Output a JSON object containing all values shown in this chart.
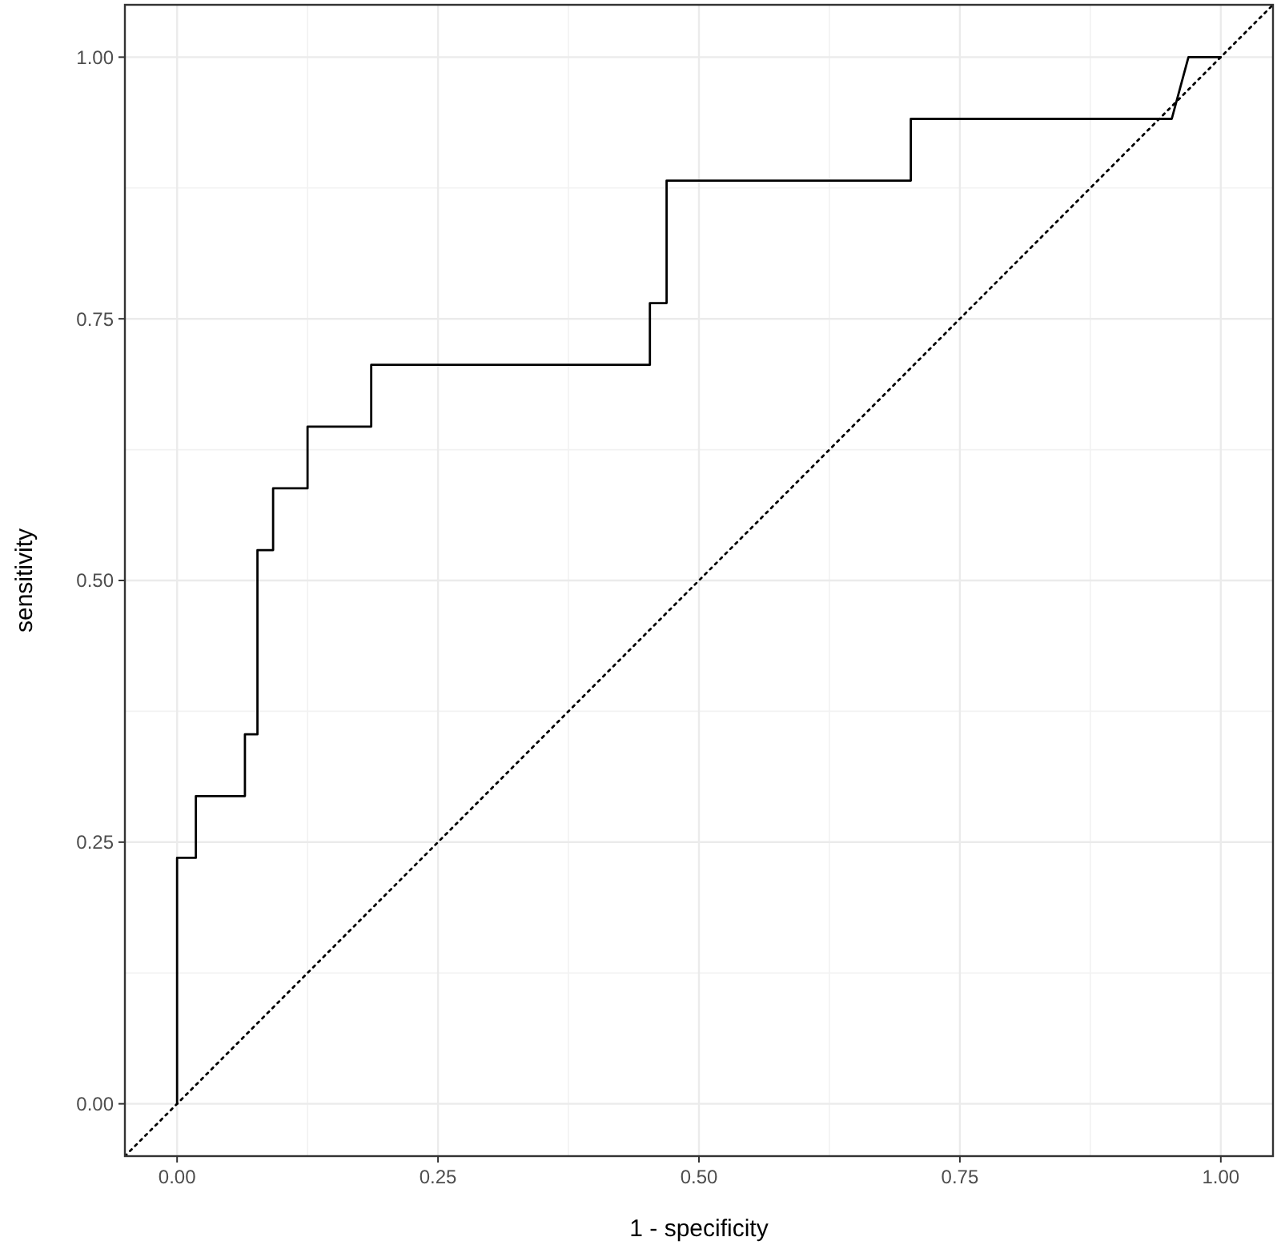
{
  "chart_data": {
    "type": "line",
    "xlabel": "1 - specificity",
    "ylabel": "sensitivity",
    "xlim": [
      -0.05,
      1.05
    ],
    "ylim": [
      -0.05,
      1.05
    ],
    "xticks": [
      {
        "value": 0,
        "label": "0.00"
      },
      {
        "value": 0.25,
        "label": "0.25"
      },
      {
        "value": 0.5,
        "label": "0.50"
      },
      {
        "value": 0.75,
        "label": "0.75"
      },
      {
        "value": 1,
        "label": "1.00"
      }
    ],
    "yticks": [
      {
        "value": 0,
        "label": "0.00"
      },
      {
        "value": 0.25,
        "label": "0.25"
      },
      {
        "value": 0.5,
        "label": "0.50"
      },
      {
        "value": 0.75,
        "label": "0.75"
      },
      {
        "value": 1,
        "label": "1.00"
      }
    ],
    "grid": true,
    "series": [
      {
        "color": "#000000",
        "line_style": "solid",
        "x": [
          0,
          0,
          0.018,
          0.018,
          0.065,
          0.065,
          0.077,
          0.077,
          0.092,
          0.092,
          0.125,
          0.125,
          0.186,
          0.186,
          0.453,
          0.453,
          0.469,
          0.469,
          0.703,
          0.703,
          0.953,
          0.969,
          1
        ],
        "values": [
          0,
          0.235,
          0.235,
          0.294,
          0.294,
          0.353,
          0.353,
          0.529,
          0.529,
          0.588,
          0.588,
          0.647,
          0.647,
          0.706,
          0.706,
          0.765,
          0.765,
          0.882,
          0.882,
          0.941,
          0.941,
          1,
          1
        ]
      },
      {
        "color": "#000000",
        "line_style": "dotted",
        "x": [
          -0.05,
          1.05
        ],
        "values": [
          -0.05,
          1.05
        ]
      }
    ]
  }
}
